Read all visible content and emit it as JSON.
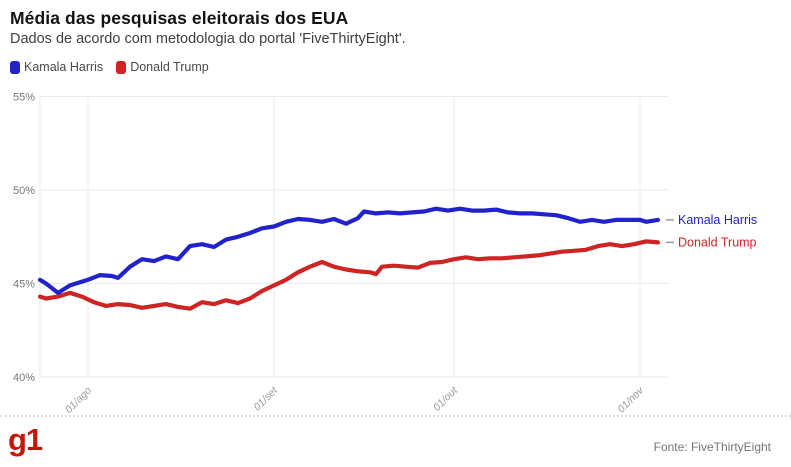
{
  "header": {
    "title": "Média das pesquisas eleitorais dos EUA",
    "subtitle": "Dados de acordo com metodologia do portal 'FiveThirtyEight'."
  },
  "footer": {
    "logo_text": "g1",
    "source": "Fonte: FiveThirtyEight"
  },
  "colors": {
    "harris_blue": "#2222CC",
    "trump_red": "#CE2424",
    "grid": "#E9E9E9",
    "y_tick_text": "#757575",
    "x_tick_text": "#999999",
    "end_dash": "#999999",
    "logo_red": "#C4170C"
  },
  "chart_data": {
    "type": "line",
    "title": "Média das pesquisas eleitorais dos EUA",
    "x_unit": "days since 24/jul/2024",
    "xlim_days": [
      0,
      103
    ],
    "ylim": [
      40,
      55
    ],
    "grid": true,
    "y_ticks": [
      {
        "value": 55,
        "label": "55%"
      },
      {
        "value": 50,
        "label": "50%"
      },
      {
        "value": 45,
        "label": "45%"
      },
      {
        "value": 40,
        "label": "40%"
      }
    ],
    "x_ticks": [
      {
        "day": 8,
        "label": "01/ago"
      },
      {
        "day": 39,
        "label": "01/set"
      },
      {
        "day": 69,
        "label": "01/out"
      },
      {
        "day": 100,
        "label": "01/nov"
      }
    ],
    "series": [
      {
        "name": "Kamala Harris",
        "end_label": "Kamala Harris",
        "color": "#2222CC",
        "points": [
          [
            0,
            45.2
          ],
          [
            1,
            45.0
          ],
          [
            3,
            44.5
          ],
          [
            5,
            44.9
          ],
          [
            8,
            45.2
          ],
          [
            10,
            45.45
          ],
          [
            12,
            45.4
          ],
          [
            13,
            45.3
          ],
          [
            15,
            45.9
          ],
          [
            17,
            46.3
          ],
          [
            19,
            46.2
          ],
          [
            21,
            46.45
          ],
          [
            23,
            46.3
          ],
          [
            25,
            47.0
          ],
          [
            27,
            47.1
          ],
          [
            29,
            46.95
          ],
          [
            31,
            47.35
          ],
          [
            33,
            47.5
          ],
          [
            35,
            47.7
          ],
          [
            37,
            47.95
          ],
          [
            39,
            48.05
          ],
          [
            41,
            48.3
          ],
          [
            43,
            48.45
          ],
          [
            45,
            48.4
          ],
          [
            47,
            48.3
          ],
          [
            49,
            48.45
          ],
          [
            51,
            48.2
          ],
          [
            53,
            48.5
          ],
          [
            54,
            48.85
          ],
          [
            56,
            48.75
          ],
          [
            58,
            48.8
          ],
          [
            60,
            48.75
          ],
          [
            62,
            48.8
          ],
          [
            64,
            48.85
          ],
          [
            66,
            49.0
          ],
          [
            68,
            48.9
          ],
          [
            70,
            49.0
          ],
          [
            72,
            48.9
          ],
          [
            74,
            48.9
          ],
          [
            76,
            48.95
          ],
          [
            78,
            48.8
          ],
          [
            80,
            48.75
          ],
          [
            82,
            48.75
          ],
          [
            84,
            48.7
          ],
          [
            86,
            48.65
          ],
          [
            88,
            48.5
          ],
          [
            90,
            48.3
          ],
          [
            92,
            48.4
          ],
          [
            94,
            48.3
          ],
          [
            96,
            48.4
          ],
          [
            98,
            48.4
          ],
          [
            100,
            48.4
          ],
          [
            101,
            48.3
          ],
          [
            103,
            48.4
          ]
        ]
      },
      {
        "name": "Donald Trump",
        "end_label": "Donald Trump",
        "color": "#CE2424",
        "points": [
          [
            0,
            44.3
          ],
          [
            1,
            44.2
          ],
          [
            3,
            44.3
          ],
          [
            5,
            44.5
          ],
          [
            7,
            44.3
          ],
          [
            9,
            44.0
          ],
          [
            11,
            43.8
          ],
          [
            13,
            43.9
          ],
          [
            15,
            43.85
          ],
          [
            17,
            43.7
          ],
          [
            19,
            43.8
          ],
          [
            21,
            43.9
          ],
          [
            23,
            43.75
          ],
          [
            25,
            43.65
          ],
          [
            27,
            44.0
          ],
          [
            29,
            43.9
          ],
          [
            31,
            44.1
          ],
          [
            33,
            43.95
          ],
          [
            35,
            44.2
          ],
          [
            37,
            44.6
          ],
          [
            39,
            44.9
          ],
          [
            41,
            45.2
          ],
          [
            43,
            45.6
          ],
          [
            45,
            45.9
          ],
          [
            47,
            46.15
          ],
          [
            49,
            45.9
          ],
          [
            51,
            45.75
          ],
          [
            53,
            45.65
          ],
          [
            55,
            45.6
          ],
          [
            56,
            45.5
          ],
          [
            57,
            45.9
          ],
          [
            59,
            45.95
          ],
          [
            61,
            45.9
          ],
          [
            63,
            45.85
          ],
          [
            65,
            46.1
          ],
          [
            67,
            46.15
          ],
          [
            69,
            46.3
          ],
          [
            71,
            46.4
          ],
          [
            73,
            46.3
          ],
          [
            75,
            46.35
          ],
          [
            77,
            46.35
          ],
          [
            79,
            46.4
          ],
          [
            81,
            46.45
          ],
          [
            83,
            46.5
          ],
          [
            85,
            46.6
          ],
          [
            87,
            46.7
          ],
          [
            89,
            46.75
          ],
          [
            91,
            46.8
          ],
          [
            93,
            47.0
          ],
          [
            95,
            47.1
          ],
          [
            97,
            47.0
          ],
          [
            99,
            47.1
          ],
          [
            101,
            47.25
          ],
          [
            103,
            47.2
          ]
        ]
      }
    ]
  }
}
